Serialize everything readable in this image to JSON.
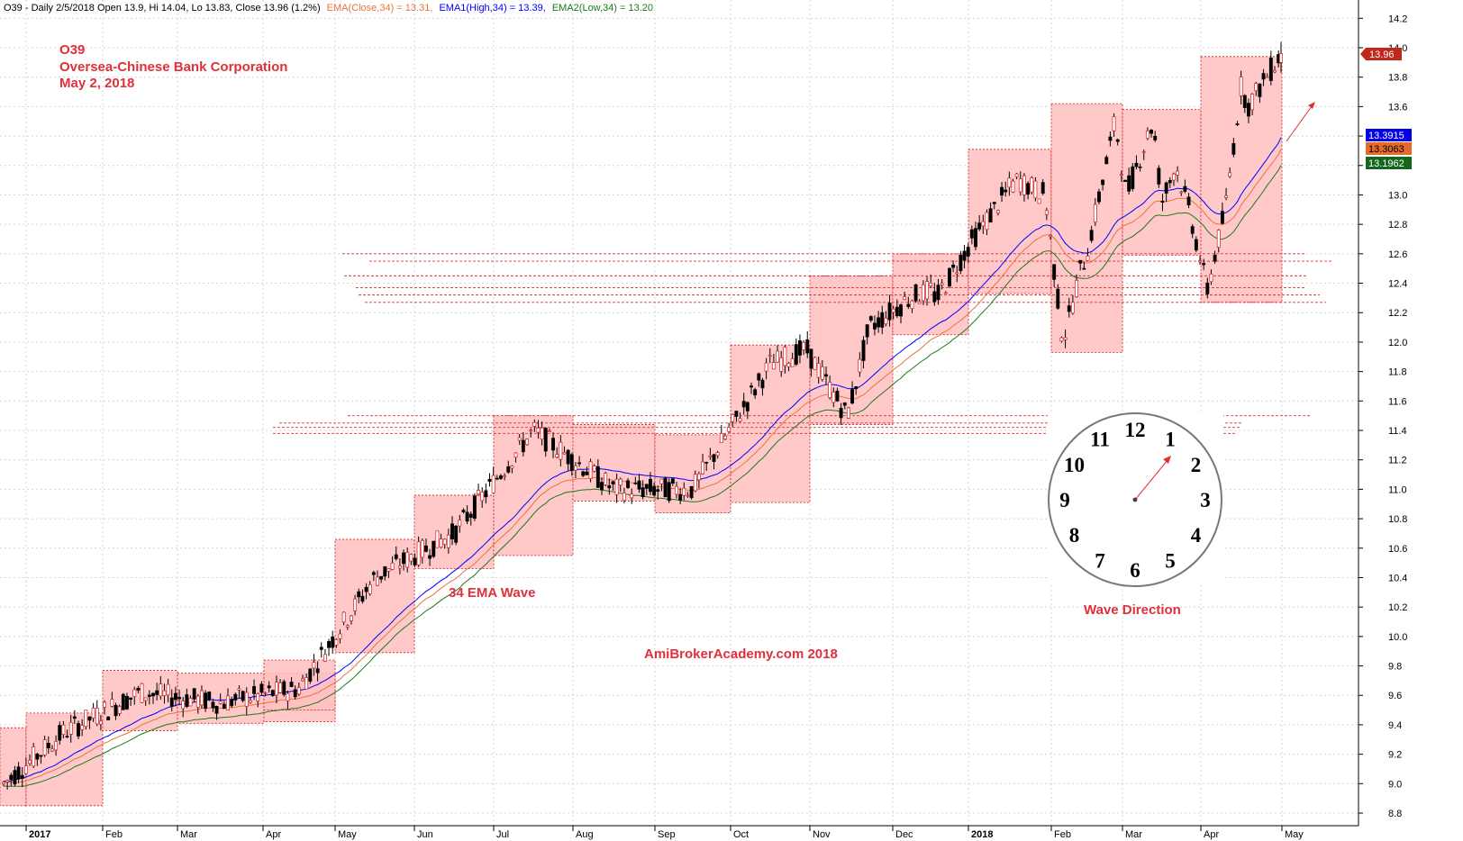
{
  "header": {
    "symbol_info": "O39 - Daily 2/5/2018 Open 13.9, Hi 14.04, Lo 13.83, Close 13.96 (1.2%)",
    "ema_close": "EMA(Close,34) = 13.31,",
    "ema_high": "EMA1(High,34) = 13.39,",
    "ema_low": "EMA2(Low,34) = 13.20"
  },
  "annotations": {
    "ticker": "O39",
    "company": "Oversea-Chinese Bank Corporation",
    "date": "May 2, 2018",
    "ema_wave": "34 EMA Wave",
    "watermark": "AmiBrokerAcademy.com  2018",
    "wave_direction": "Wave Direction"
  },
  "price_tags": {
    "close": "13.96",
    "ema_high": "13.3915",
    "ema_close": "13.3063",
    "ema_low": "13.1962"
  },
  "clock_numbers": [
    "12",
    "1",
    "2",
    "3",
    "4",
    "5",
    "6",
    "7",
    "8",
    "9",
    "10",
    "11"
  ],
  "colors": {
    "candle_up": "#ffffff",
    "candle_down": "#000000",
    "ema_close": "#e8743b",
    "ema_high": "#0000ff",
    "ema_low": "#1a7a1a",
    "box_fill": "#ffc0c0",
    "box_border": "#d02020",
    "annotation": "#e0303a",
    "close_tag": "#c0281c",
    "ema_close_tag": "#e56a2a",
    "ema_high_tag": "#0000e6",
    "ema_low_tag": "#16651c"
  },
  "chart_data": {
    "type": "candlestick",
    "ylim": [
      8.8,
      14.2
    ],
    "y_ticks": [
      "8.8",
      "9.0",
      "9.2",
      "9.4",
      "9.6",
      "9.8",
      "10.0",
      "10.2",
      "10.4",
      "10.6",
      "10.8",
      "11.0",
      "11.2",
      "11.4",
      "11.6",
      "11.8",
      "12.0",
      "12.2",
      "12.4",
      "12.6",
      "12.8",
      "13.0",
      "13.2",
      "13.4",
      "13.6",
      "13.8",
      "14.0",
      "14.2"
    ],
    "x_labels": [
      "2017",
      "Feb",
      "Mar",
      "Apr",
      "May",
      "Jun",
      "Jul",
      "Aug",
      "Sep",
      "Oct",
      "Nov",
      "Dec",
      "2018",
      "Feb",
      "Mar",
      "Apr",
      "May"
    ],
    "bold_x_labels": [
      "2017",
      "2018"
    ],
    "month_closes": [
      {
        "month": "Jan 2017",
        "close": 9.35
      },
      {
        "month": "Feb 2017",
        "close": 9.62
      },
      {
        "month": "Mar 2017",
        "close": 9.55
      },
      {
        "month": "Apr 2017",
        "close": 9.65
      },
      {
        "month": "May 2017",
        "close": 10.4
      },
      {
        "month": "Jun 2017",
        "close": 10.7
      },
      {
        "month": "Jul 2017",
        "close": 11.4
      },
      {
        "month": "Aug 2017",
        "close": 11.0
      },
      {
        "month": "Sep 2017",
        "close": 11.0
      },
      {
        "month": "Oct 2017",
        "close": 11.85
      },
      {
        "month": "Nov 2017",
        "close": 11.6
      },
      {
        "month": "Dec 2017",
        "close": 12.35
      },
      {
        "month": "Jan 2018",
        "close": 13.05
      },
      {
        "month": "Feb 2018",
        "close": 12.6
      },
      {
        "month": "Mar 2018",
        "close": 12.95
      },
      {
        "month": "Apr 2018",
        "close": 13.75
      },
      {
        "month": "May 2018",
        "close": 13.96
      }
    ],
    "last_bar": {
      "date": "2/5/2018",
      "open": 13.9,
      "high": 14.04,
      "low": 13.83,
      "close": 13.96
    },
    "ema_last": {
      "ema_close_34": 13.31,
      "ema_high_34": 13.39,
      "ema_low_34": 13.2
    },
    "wave_boxes": [
      {
        "month": "Jan 2017",
        "low": 8.85,
        "high": 9.38
      },
      {
        "month": "Jan-Feb 2017",
        "low": 8.85,
        "high": 9.48
      },
      {
        "month": "Feb 2017",
        "low": 9.36,
        "high": 9.77
      },
      {
        "month": "Mar 2017",
        "low": 9.41,
        "high": 9.75
      },
      {
        "month": "Apr 2017",
        "low": 9.42,
        "high": 9.75
      },
      {
        "month": "Apr-May 2017",
        "low": 9.5,
        "high": 9.84
      },
      {
        "month": "May 2017",
        "low": 9.89,
        "high": 10.66
      },
      {
        "month": "Jun 2017",
        "low": 10.46,
        "high": 10.96
      },
      {
        "month": "Jul 2017",
        "low": 10.55,
        "high": 11.5
      },
      {
        "month": "Aug 2017",
        "low": 10.92,
        "high": 11.44
      },
      {
        "month": "Sep 2017",
        "low": 10.84,
        "high": 11.37
      },
      {
        "month": "Oct 2017",
        "low": 10.91,
        "high": 11.98
      },
      {
        "month": "Nov 2017",
        "low": 11.44,
        "high": 12.45
      },
      {
        "month": "Dec 2017",
        "low": 12.05,
        "high": 12.6
      },
      {
        "month": "Jan 2018",
        "low": 12.33,
        "high": 13.31
      },
      {
        "month": "Feb 2018",
        "low": 11.93,
        "high": 13.62
      },
      {
        "month": "Mar 2018",
        "low": 12.59,
        "high": 13.58
      },
      {
        "month": "Apr 2018",
        "low": 12.27,
        "high": 13.94
      }
    ],
    "horizontal_levels": [
      11.38,
      11.42,
      11.45,
      11.5,
      12.27,
      12.32,
      12.37,
      12.45,
      12.55,
      12.6
    ],
    "legend": "none"
  }
}
